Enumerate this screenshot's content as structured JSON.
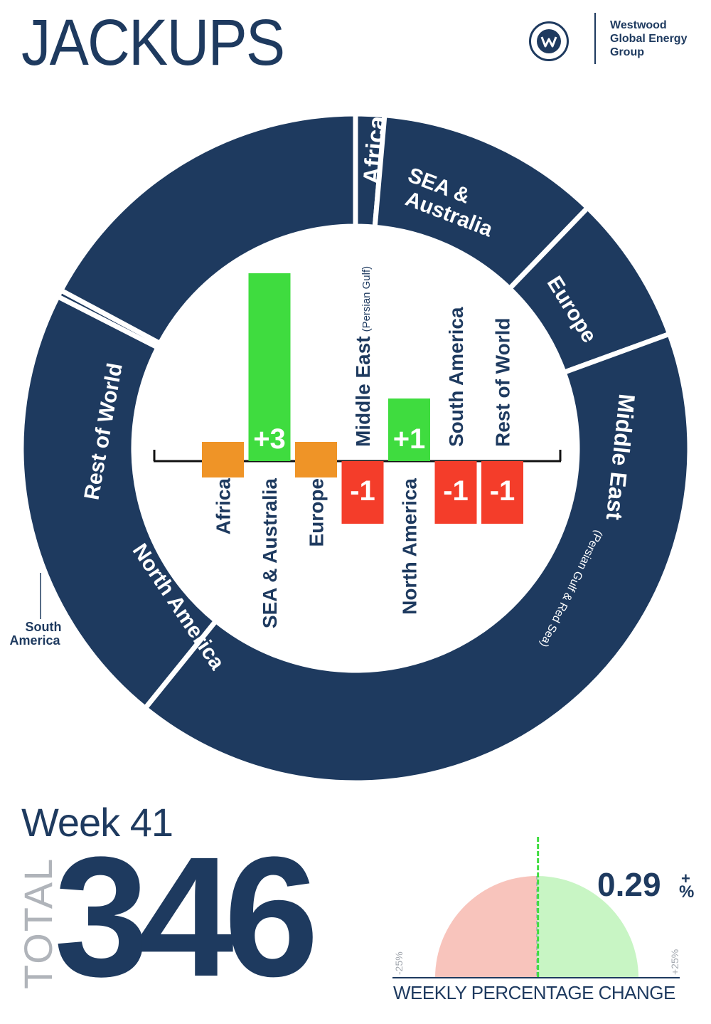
{
  "header": {
    "title": "JACKUPS",
    "logo_text": "Westwood\nGlobal Energy\nGroup"
  },
  "colors": {
    "navy": "#1e3a5f",
    "increase": "#3fdc3f",
    "decrease": "#f43d2a",
    "no_change": "#ef9427",
    "gauge_negative": "#f8c4bc",
    "gauge_positive": "#c8f5c4"
  },
  "chart_data": [
    {
      "type": "pie",
      "subtype": "donut",
      "segments": [
        {
          "label": "Africa",
          "sublabel": ""
        },
        {
          "label": "SEA & Australia",
          "sublabel": ""
        },
        {
          "label": "Europe",
          "sublabel": ""
        },
        {
          "label": "Middle East",
          "sublabel": "(Persian Gulf & Red Sea)"
        },
        {
          "label": "North America",
          "sublabel": ""
        },
        {
          "label": "South America",
          "sublabel": ""
        },
        {
          "label": "Rest of World",
          "sublabel": ""
        }
      ],
      "segment_display_labels": [
        "Africa",
        "SEA &",
        "Australia",
        "Europe",
        "Middle East",
        "(Persian Gulf & Red Sea)",
        "North America",
        "Rest of World",
        "South",
        "America"
      ]
    },
    {
      "type": "bar",
      "categories": [
        "Africa",
        "SEA & Australia",
        "Europe",
        "Middle East",
        "North America",
        "South America",
        "Rest of World"
      ],
      "category_sublabels": [
        "",
        "",
        "",
        "(Persian Gulf)",
        "",
        "",
        ""
      ],
      "values": [
        0,
        3,
        0,
        -1,
        1,
        -1,
        -1
      ],
      "data_labels": [
        "",
        "+3",
        "",
        "-1",
        "+1",
        "-1",
        "-1"
      ]
    }
  ],
  "summary": {
    "week_label": "Week 41",
    "total_label": "TOTAL",
    "total_value": "346",
    "weekly_change": 0.29,
    "weekly_change_value": "0.29",
    "weekly_change_sign": "+",
    "weekly_change_unit": "%",
    "gauge_min_label": "-25%",
    "gauge_max_label": "+25%",
    "gauge_min": -25,
    "gauge_max": 25,
    "gauge_caption": "WEEKLY PERCENTAGE CHANGE"
  }
}
